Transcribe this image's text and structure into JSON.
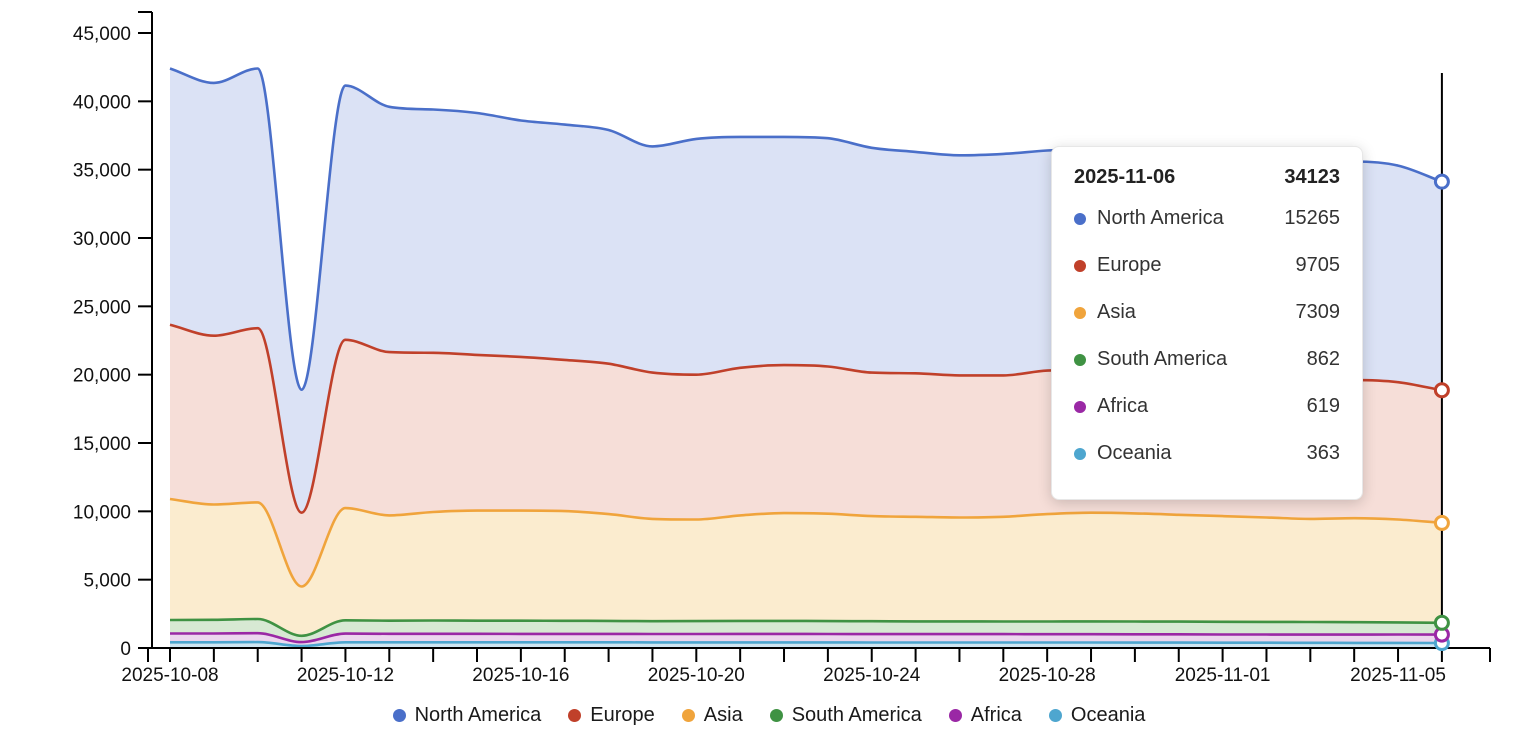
{
  "chart_data": {
    "type": "area",
    "stacked": true,
    "title": "",
    "xlabel": "",
    "ylabel": "",
    "grid": false,
    "legend_position": "bottom",
    "ylim": [
      0,
      45000
    ],
    "y_ticks": [
      0,
      5000,
      10000,
      15000,
      20000,
      25000,
      30000,
      35000,
      40000,
      45000
    ],
    "y_tick_labels": [
      "0",
      "5,000",
      "10,000",
      "15,000",
      "20,000",
      "25,000",
      "30,000",
      "35,000",
      "40,000",
      "45,000"
    ],
    "x": [
      "2025-10-08",
      "2025-10-09",
      "2025-10-10",
      "2025-10-11",
      "2025-10-12",
      "2025-10-13",
      "2025-10-14",
      "2025-10-15",
      "2025-10-16",
      "2025-10-17",
      "2025-10-18",
      "2025-10-19",
      "2025-10-20",
      "2025-10-21",
      "2025-10-22",
      "2025-10-23",
      "2025-10-24",
      "2025-10-25",
      "2025-10-26",
      "2025-10-27",
      "2025-10-28",
      "2025-10-29",
      "2025-10-30",
      "2025-10-31",
      "2025-11-01",
      "2025-11-02",
      "2025-11-03",
      "2025-11-04",
      "2025-11-05",
      "2025-11-06"
    ],
    "x_label_indices": [
      0,
      4,
      8,
      12,
      16,
      20,
      24,
      28
    ],
    "x_labels_shown": [
      "2025-10-08",
      "2025-10-12",
      "2025-10-16",
      "2025-10-20",
      "2025-10-24",
      "2025-10-28",
      "2025-11-01",
      "2025-11-05"
    ],
    "stack_order_bottom_to_top": [
      "Oceania",
      "Africa",
      "South America",
      "Asia",
      "Europe",
      "North America"
    ],
    "series": [
      {
        "name": "North America",
        "line_color": "#4a6fc9",
        "fill_color": "#dbe2f5",
        "values": [
          18750,
          18500,
          19000,
          9000,
          18600,
          17950,
          17800,
          17700,
          17300,
          17220,
          17100,
          16550,
          17250,
          16900,
          16700,
          16700,
          16450,
          16200,
          16100,
          16200,
          16100,
          16150,
          16100,
          16100,
          16050,
          16050,
          16000,
          16000,
          15850,
          15265
        ]
      },
      {
        "name": "Europe",
        "line_color": "#c0402a",
        "fill_color": "#f6ded8",
        "values": [
          12750,
          12350,
          12750,
          5400,
          12310,
          11950,
          11650,
          11400,
          11250,
          11060,
          11000,
          10700,
          10600,
          10800,
          10830,
          10770,
          10500,
          10500,
          10400,
          10350,
          10500,
          10450,
          10350,
          10350,
          10300,
          10300,
          10150,
          10100,
          10050,
          9705
        ]
      },
      {
        "name": "Asia",
        "line_color": "#f0a43c",
        "fill_color": "#fbeccf",
        "values": [
          8850,
          8440,
          8530,
          3610,
          8210,
          7700,
          7940,
          8050,
          8050,
          8030,
          7820,
          7490,
          7430,
          7720,
          7890,
          7860,
          7690,
          7650,
          7600,
          7660,
          7860,
          7950,
          7910,
          7820,
          7730,
          7640,
          7550,
          7610,
          7530,
          7309
        ]
      },
      {
        "name": "South America",
        "line_color": "#3f9243",
        "fill_color": "#d7e9d3",
        "values": [
          990,
          1000,
          1040,
          460,
          980,
          960,
          970,
          960,
          965,
          960,
          950,
          935,
          945,
          950,
          950,
          945,
          940,
          930,
          935,
          925,
          930,
          940,
          935,
          930,
          930,
          925,
          920,
          910,
          880,
          862
        ]
      },
      {
        "name": "Africa",
        "line_color": "#9a28a5",
        "fill_color": "#ecd7ee",
        "values": [
          640,
          640,
          650,
          280,
          630,
          620,
          620,
          620,
          620,
          615,
          615,
          615,
          615,
          620,
          620,
          615,
          615,
          615,
          610,
          615,
          610,
          610,
          610,
          605,
          600,
          600,
          600,
          605,
          620,
          619
        ]
      },
      {
        "name": "Oceania",
        "line_color": "#4ea6cf",
        "fill_color": "#cfe6f2",
        "values": [
          420,
          420,
          430,
          150,
          420,
          420,
          420,
          420,
          415,
          415,
          415,
          410,
          410,
          410,
          410,
          410,
          405,
          405,
          405,
          400,
          400,
          400,
          395,
          395,
          390,
          385,
          380,
          375,
          370,
          363
        ]
      }
    ],
    "crosshair": {
      "x_index": 29,
      "color": "#000000"
    }
  },
  "tooltip": {
    "date": "2025-11-06",
    "total": "34123",
    "rows": [
      {
        "label": "North America",
        "value": "15265",
        "color": "#4a6fc9"
      },
      {
        "label": "Europe",
        "value": "9705",
        "color": "#c0402a"
      },
      {
        "label": "Asia",
        "value": "7309",
        "color": "#f0a43c"
      },
      {
        "label": "South America",
        "value": "862",
        "color": "#3f9243"
      },
      {
        "label": "Africa",
        "value": "619",
        "color": "#9a28a5"
      },
      {
        "label": "Oceania",
        "value": "363",
        "color": "#4ea6cf"
      }
    ]
  },
  "legend": {
    "items": [
      {
        "label": "North America",
        "color": "#4a6fc9"
      },
      {
        "label": "Europe",
        "color": "#c0402a"
      },
      {
        "label": "Asia",
        "color": "#f0a43c"
      },
      {
        "label": "South America",
        "color": "#3f9243"
      },
      {
        "label": "Africa",
        "color": "#9a28a5"
      },
      {
        "label": "Oceania",
        "color": "#4ea6cf"
      }
    ]
  }
}
